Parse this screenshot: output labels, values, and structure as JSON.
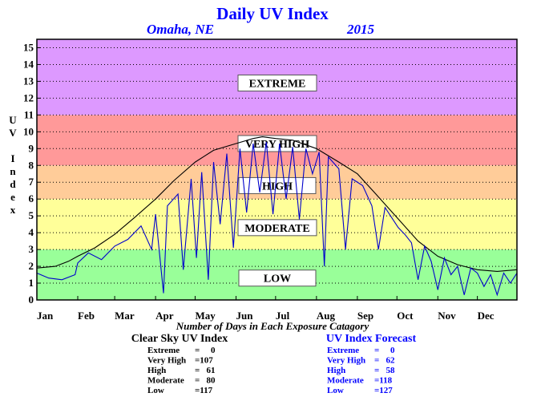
{
  "header": {
    "title": "Daily UV Index",
    "location": "Omaha, NE",
    "year": "2015"
  },
  "chart_data": {
    "type": "line",
    "title": "Daily UV Index",
    "subtitle": "Omaha, NE",
    "year": "2015",
    "xlabel": "",
    "ylabel": "UV Index",
    "ylabel_letters": [
      "U",
      "V",
      "",
      "I",
      "n",
      "d",
      "e",
      "x"
    ],
    "xlim": [
      1,
      365
    ],
    "ylim": [
      0,
      15
    ],
    "yticks": [
      0,
      1,
      2,
      3,
      4,
      5,
      6,
      7,
      8,
      9,
      10,
      11,
      12,
      13,
      14,
      15
    ],
    "xticks": [
      {
        "label": "Jan",
        "day": 1
      },
      {
        "label": "Feb",
        "day": 32
      },
      {
        "label": "Mar",
        "day": 60
      },
      {
        "label": "Apr",
        "day": 91
      },
      {
        "label": "May",
        "day": 121
      },
      {
        "label": "Jun",
        "day": 152
      },
      {
        "label": "Jul",
        "day": 182
      },
      {
        "label": "Aug",
        "day": 213
      },
      {
        "label": "Sep",
        "day": 244
      },
      {
        "label": "Oct",
        "day": 274
      },
      {
        "label": "Nov",
        "day": 305
      },
      {
        "label": "Dec",
        "day": 335
      }
    ],
    "grid": true,
    "bands": [
      {
        "name": "LOW",
        "from": 0,
        "to": 3,
        "color": "#99ff99"
      },
      {
        "name": "MODERATE",
        "from": 3,
        "to": 6,
        "color": "#ffff99"
      },
      {
        "name": "HIGH",
        "from": 6,
        "to": 8,
        "color": "#ffcc99"
      },
      {
        "name": "VERY HIGH",
        "from": 8,
        "to": 11,
        "color": "#ff9999"
      },
      {
        "name": "EXTREME",
        "from": 11,
        "to": 15.5,
        "color": "#dd99ff"
      }
    ],
    "band_labels": [
      {
        "text": "EXTREME",
        "y": 12.9
      },
      {
        "text": "VERY HIGH",
        "y": 9.3
      },
      {
        "text": "HIGH",
        "y": 6.8
      },
      {
        "text": "MODERATE",
        "y": 4.3
      },
      {
        "text": "LOW",
        "y": 1.3
      }
    ],
    "series": [
      {
        "name": "Clear Sky UV Index",
        "color": "#000000",
        "points": [
          [
            1,
            1.9
          ],
          [
            15,
            2.0
          ],
          [
            25,
            2.3
          ],
          [
            32,
            2.6
          ],
          [
            45,
            3.1
          ],
          [
            60,
            3.9
          ],
          [
            75,
            4.9
          ],
          [
            91,
            6.0
          ],
          [
            105,
            7.1
          ],
          [
            121,
            8.2
          ],
          [
            135,
            8.9
          ],
          [
            152,
            9.3
          ],
          [
            165,
            9.6
          ],
          [
            172,
            9.7
          ],
          [
            182,
            9.6
          ],
          [
            195,
            9.5
          ],
          [
            213,
            9.0
          ],
          [
            230,
            8.2
          ],
          [
            244,
            7.5
          ],
          [
            258,
            6.3
          ],
          [
            274,
            4.9
          ],
          [
            290,
            3.5
          ],
          [
            305,
            2.6
          ],
          [
            320,
            2.1
          ],
          [
            335,
            1.8
          ],
          [
            350,
            1.7
          ],
          [
            365,
            1.8
          ]
        ]
      },
      {
        "name": "UV Index Forecast",
        "color": "#0000cc",
        "points": [
          [
            1,
            1.6
          ],
          [
            10,
            1.3
          ],
          [
            20,
            1.2
          ],
          [
            30,
            1.5
          ],
          [
            32,
            2.2
          ],
          [
            40,
            2.8
          ],
          [
            50,
            2.4
          ],
          [
            60,
            3.2
          ],
          [
            70,
            3.6
          ],
          [
            80,
            4.4
          ],
          [
            88,
            3.0
          ],
          [
            91,
            5.1
          ],
          [
            97,
            0.4
          ],
          [
            100,
            5.6
          ],
          [
            108,
            6.3
          ],
          [
            112,
            1.8
          ],
          [
            118,
            7.2
          ],
          [
            122,
            2.5
          ],
          [
            126,
            7.6
          ],
          [
            131,
            1.2
          ],
          [
            135,
            8.2
          ],
          [
            140,
            4.5
          ],
          [
            145,
            8.7
          ],
          [
            150,
            3.1
          ],
          [
            155,
            9.0
          ],
          [
            160,
            5.2
          ],
          [
            165,
            9.3
          ],
          [
            170,
            6.4
          ],
          [
            175,
            9.4
          ],
          [
            180,
            5.1
          ],
          [
            185,
            9.3
          ],
          [
            190,
            6.0
          ],
          [
            195,
            9.1
          ],
          [
            200,
            4.8
          ],
          [
            205,
            9.0
          ],
          [
            210,
            7.5
          ],
          [
            215,
            8.8
          ],
          [
            219,
            2.0
          ],
          [
            222,
            8.5
          ],
          [
            230,
            7.8
          ],
          [
            235,
            3.0
          ],
          [
            240,
            7.2
          ],
          [
            248,
            6.8
          ],
          [
            255,
            5.6
          ],
          [
            260,
            3.0
          ],
          [
            265,
            5.5
          ],
          [
            270,
            4.9
          ],
          [
            275,
            4.3
          ],
          [
            280,
            3.9
          ],
          [
            285,
            3.4
          ],
          [
            290,
            1.2
          ],
          [
            295,
            3.2
          ],
          [
            300,
            2.3
          ],
          [
            305,
            0.6
          ],
          [
            310,
            2.5
          ],
          [
            315,
            1.5
          ],
          [
            320,
            2.0
          ],
          [
            325,
            0.3
          ],
          [
            330,
            1.9
          ],
          [
            335,
            1.6
          ],
          [
            340,
            0.8
          ],
          [
            345,
            1.5
          ],
          [
            350,
            0.3
          ],
          [
            355,
            1.6
          ],
          [
            360,
            1.0
          ],
          [
            365,
            1.6
          ]
        ]
      }
    ]
  },
  "summary": {
    "caption": "Number of Days in Each Exposure Catagory",
    "clear_sky": {
      "title": "Clear Sky UV Index",
      "rows": [
        {
          "label": "Extreme",
          "value": "=     0"
        },
        {
          "label": "Very High",
          "value": "=107"
        },
        {
          "label": "High",
          "value": "=   61"
        },
        {
          "label": "Moderate",
          "value": "=   80"
        },
        {
          "label": "Low",
          "value": "=117"
        }
      ]
    },
    "forecast": {
      "title": "UV Index Forecast",
      "rows": [
        {
          "label": "Extreme",
          "value": "=     0"
        },
        {
          "label": "Very High",
          "value": "=   62"
        },
        {
          "label": "High",
          "value": "=   58"
        },
        {
          "label": "Moderate",
          "value": "=118"
        },
        {
          "label": "Low",
          "value": "=127"
        }
      ]
    }
  }
}
